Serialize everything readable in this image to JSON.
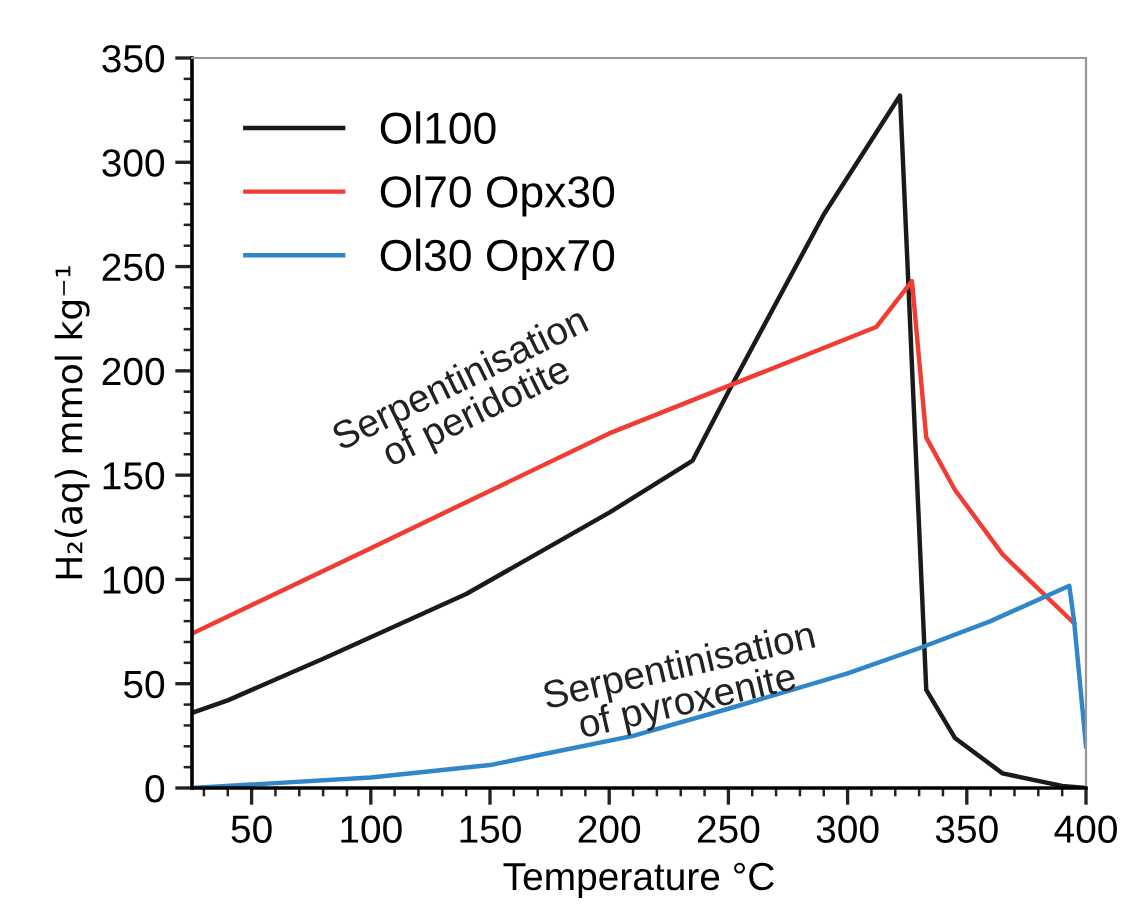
{
  "chart_data": {
    "type": "line",
    "xlabel": "Temperature °C",
    "ylabel": "H₂(aq) mmol kg⁻¹",
    "xlim": [
      25,
      400
    ],
    "xticks": [
      50,
      100,
      150,
      200,
      250,
      300,
      350,
      400
    ],
    "ylim": [
      0,
      350
    ],
    "yticks": [
      0,
      50,
      100,
      150,
      200,
      250,
      300,
      350
    ],
    "legend": "top left",
    "grid": false,
    "marker": "none",
    "line_style": "solid",
    "series": [
      {
        "name": "Ol100",
        "color": "#1a1a1a",
        "x": [
          25,
          40,
          80,
          140,
          200,
          235,
          250,
          290,
          322,
          333,
          345,
          365,
          390,
          400
        ],
        "values": [
          36,
          42,
          62,
          93,
          132,
          157,
          190,
          275,
          332,
          47,
          24,
          7,
          1,
          0
        ]
      },
      {
        "name": "Ol70 Opx30",
        "color": "#f03c32",
        "x": [
          25,
          100,
          200,
          312,
          327,
          333,
          345,
          365,
          395
        ],
        "values": [
          74,
          115,
          170,
          221,
          243,
          168,
          143,
          112,
          79
        ]
      },
      {
        "name": "Ol30 Opx70",
        "color": "#2f86c8",
        "x": [
          25,
          100,
          150,
          210,
          250,
          300,
          330,
          360,
          393,
          395,
          400
        ],
        "values": [
          0,
          5,
          11,
          25,
          38,
          55,
          67,
          80,
          97,
          80,
          20
        ]
      }
    ],
    "annotations": [
      "Serpentinisation\nof peridotite",
      "Serpentinisation\nof pyroxenite"
    ]
  }
}
